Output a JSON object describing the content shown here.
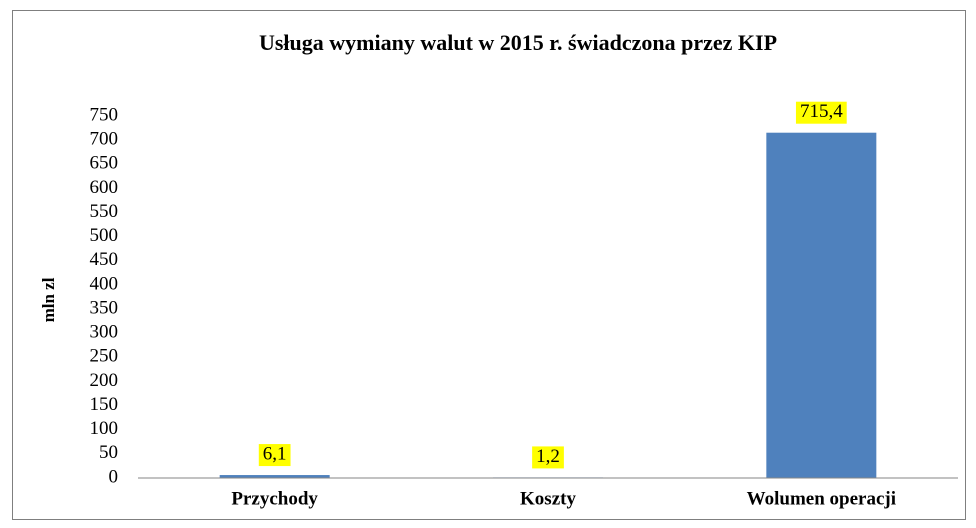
{
  "chart_data": {
    "type": "bar",
    "title": "Usługa wymiany walut w 2015 r. świadczona przez KIP",
    "y_label": "mln zl",
    "categories": [
      "Przychody",
      "Koszty",
      "Wolumen operacji"
    ],
    "values": [
      6.1,
      1.2,
      715.4
    ],
    "value_labels": [
      "6,1",
      "1,2",
      "715,4"
    ],
    "color": "#4f81bd",
    "ylim": [
      0,
      750
    ],
    "yticks": [
      0,
      50,
      100,
      150,
      200,
      250,
      300,
      350,
      400,
      450,
      500,
      550,
      600,
      650,
      700,
      750
    ],
    "grid": false
  }
}
